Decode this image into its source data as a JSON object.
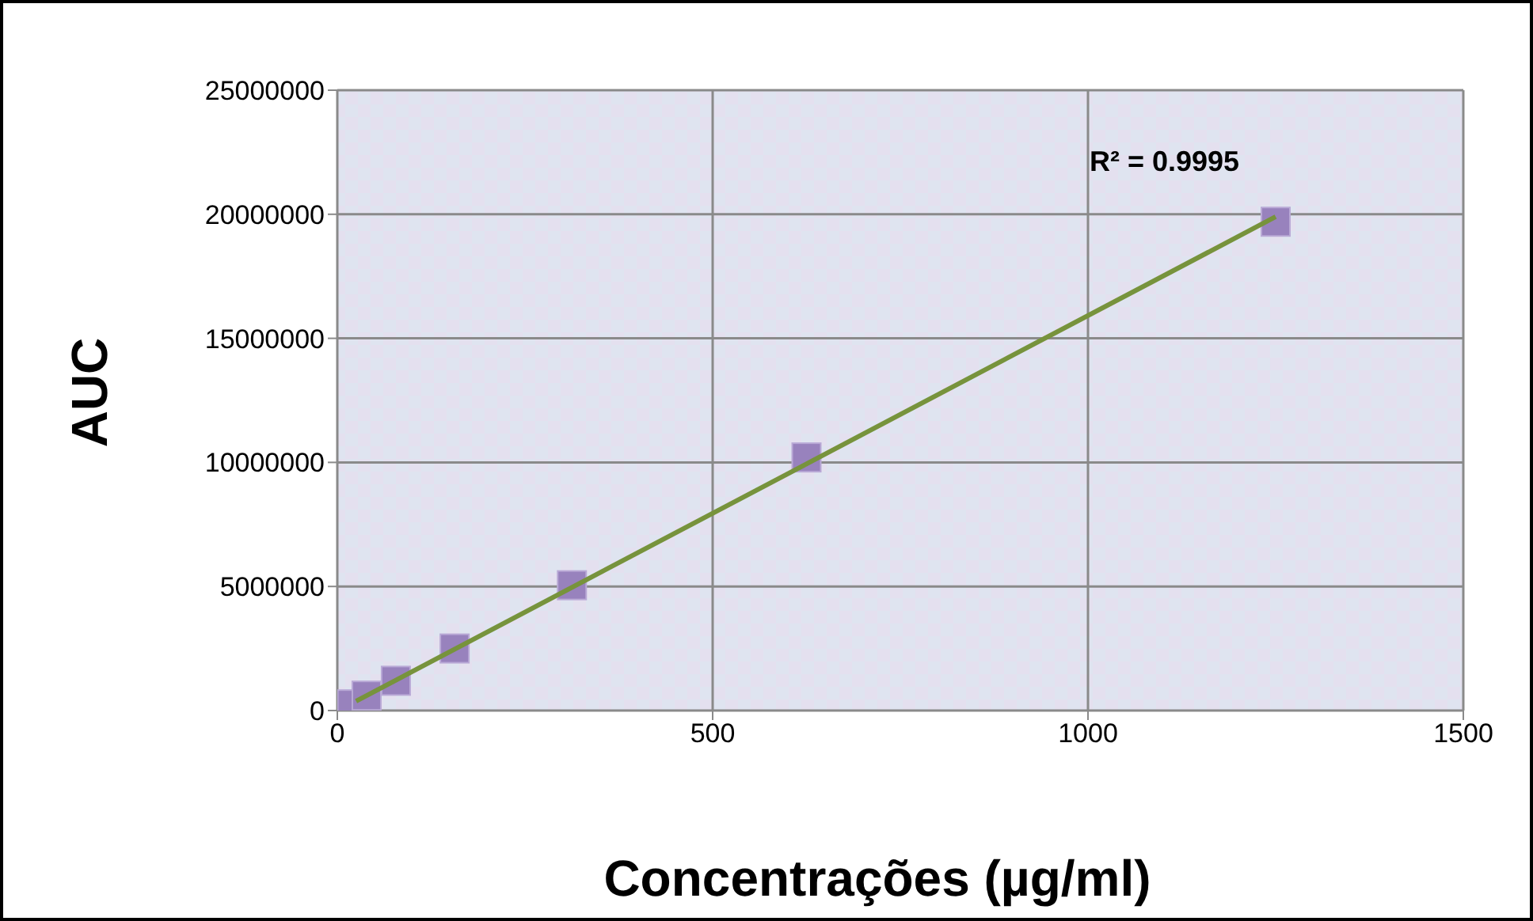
{
  "chart_data": {
    "type": "scatter",
    "xlabel": "Concentrações (µg/ml)",
    "ylabel": "AUC",
    "series": [
      {
        "color": "#9882bd",
        "marker": "square",
        "x": [
          19.5,
          39,
          78,
          156.25,
          312.5,
          625,
          1250
        ],
        "values": [
          250000,
          600000,
          1200000,
          2500000,
          5050000,
          10200000,
          19700000
        ]
      },
      {
        "type": "line",
        "color": "#77933c",
        "marker": "none",
        "x": [
          25,
          1250
        ],
        "values": [
          380000,
          19900000
        ]
      }
    ],
    "xlim": [
      0,
      1500
    ],
    "xticks": [
      0,
      500,
      1000,
      1500
    ],
    "ylim": [
      0,
      25000000
    ],
    "yticks": [
      0,
      5000000,
      10000000,
      15000000,
      20000000,
      25000000
    ],
    "grid": true,
    "legend": false,
    "annotations": [
      "R² = 0.9995"
    ]
  }
}
